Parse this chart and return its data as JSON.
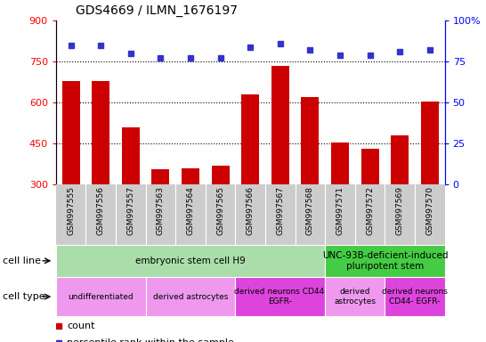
{
  "title": "GDS4669 / ILMN_1676197",
  "samples": [
    "GSM997555",
    "GSM997556",
    "GSM997557",
    "GSM997563",
    "GSM997564",
    "GSM997565",
    "GSM997566",
    "GSM997567",
    "GSM997568",
    "GSM997571",
    "GSM997572",
    "GSM997569",
    "GSM997570"
  ],
  "counts": [
    680,
    678,
    510,
    355,
    360,
    370,
    630,
    735,
    620,
    455,
    430,
    480,
    605
  ],
  "percentiles": [
    85,
    85,
    80,
    77,
    77,
    77,
    84,
    86,
    82,
    79,
    79,
    81,
    82
  ],
  "ylim_left": [
    300,
    900
  ],
  "ylim_right": [
    0,
    100
  ],
  "yticks_left": [
    300,
    450,
    600,
    750,
    900
  ],
  "yticks_right": [
    0,
    25,
    50,
    75,
    100
  ],
  "bar_color": "#cc0000",
  "dot_color": "#3333cc",
  "cell_line_row": [
    {
      "label": "embryonic stem cell H9",
      "start": 0,
      "end": 9,
      "color": "#aaddaa"
    },
    {
      "label": "UNC-93B-deficient-induced\npluripotent stem",
      "start": 9,
      "end": 13,
      "color": "#44cc44"
    }
  ],
  "cell_type_row": [
    {
      "label": "undifferentiated",
      "start": 0,
      "end": 3,
      "color": "#ee99ee"
    },
    {
      "label": "derived astrocytes",
      "start": 3,
      "end": 6,
      "color": "#ee99ee"
    },
    {
      "label": "derived neurons CD44-\nEGFR-",
      "start": 6,
      "end": 9,
      "color": "#dd44dd"
    },
    {
      "label": "derived\nastrocytes",
      "start": 9,
      "end": 11,
      "color": "#ee99ee"
    },
    {
      "label": "derived neurons\nCD44- EGFR-",
      "start": 11,
      "end": 13,
      "color": "#dd44dd"
    }
  ],
  "tick_bg_color": "#cccccc",
  "legend_count_color": "#cc0000",
  "legend_percentile_color": "#3333cc",
  "grid_lines": [
    450,
    600,
    750
  ]
}
